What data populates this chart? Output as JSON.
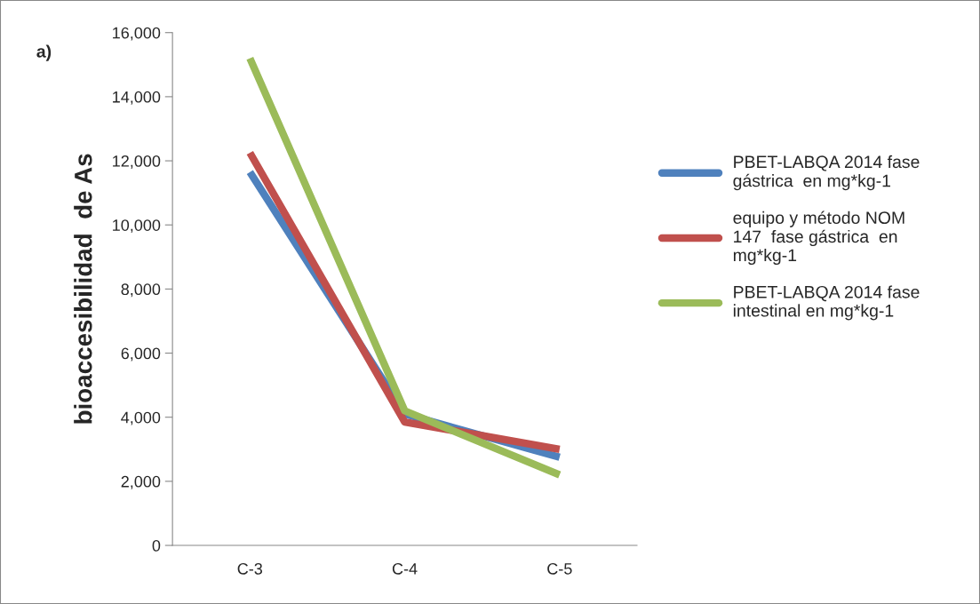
{
  "chart_data": {
    "type": "line",
    "ylabel": "bioaccesibilidad  de As",
    "annotations": [
      "a)"
    ],
    "categories": [
      "C-3",
      "C-4",
      "C-5"
    ],
    "series": [
      {
        "name": "PBET-LABQA 2014 fase gástrica  en mg*kg-1",
        "color": "#4f81bd",
        "values": [
          11650,
          4100,
          2750
        ]
      },
      {
        "name": "equipo y método NOM 147  fase gástrica  en mg*kg-1",
        "color": "#c0504d",
        "values": [
          12250,
          3850,
          3000
        ]
      },
      {
        "name": "PBET-LABQA 2014 fase intestinal en mg*kg-1",
        "color": "#9bbb59",
        "values": [
          15200,
          4200,
          2200
        ]
      }
    ],
    "ylim": [
      0,
      16000
    ],
    "yticks": [
      {
        "value": 0,
        "label": "0"
      },
      {
        "value": 2000,
        "label": "2,000"
      },
      {
        "value": 4000,
        "label": "4,000"
      },
      {
        "value": 6000,
        "label": "6,000"
      },
      {
        "value": 8000,
        "label": "8,000"
      },
      {
        "value": 10000,
        "label": "10,000"
      },
      {
        "value": 12000,
        "label": "12,000"
      },
      {
        "value": 14000,
        "label": "14,000"
      },
      {
        "value": 16000,
        "label": "16,000"
      }
    ],
    "grid": false,
    "legend": "right",
    "marker": "none",
    "line_style": "solid"
  }
}
